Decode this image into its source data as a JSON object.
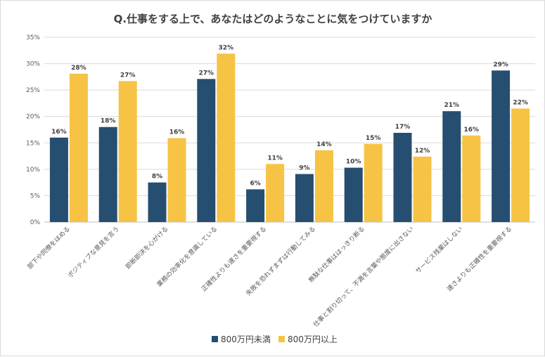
{
  "chart_data": {
    "type": "bar",
    "title": "Q.仕事をする上で、あなたはどのようなことに気をつけていますか",
    "categories": [
      "部下や同僚をほめる",
      "ポジティブな意見を言う",
      "即断即決を心がける",
      "業務の効率化を意識している",
      "正確性よりも速さを重要視する",
      "失敗を恐れずまずは行動してみる",
      "無駄な仕事ははっきり断る",
      "仕事と割り切って、不満を言葉や態度に出さない",
      "サービス残業はしない",
      "速さよりも正確性を重要視する"
    ],
    "series": [
      {
        "name": "800万円未満",
        "color": "#264e70",
        "values": [
          16,
          18,
          8,
          27,
          6,
          9,
          10,
          17,
          21,
          29
        ],
        "actual": [
          16.0,
          18.0,
          7.5,
          27.1,
          6.2,
          9.1,
          10.3,
          16.9,
          21.0,
          28.7
        ]
      },
      {
        "name": "800万円以上",
        "color": "#f6c344",
        "values": [
          28,
          27,
          16,
          32,
          11,
          14,
          15,
          12,
          16,
          22
        ],
        "actual": [
          28.1,
          26.7,
          15.9,
          31.9,
          11.0,
          13.6,
          14.8,
          12.4,
          16.4,
          21.5
        ]
      }
    ],
    "ylim": [
      0,
      35
    ],
    "yticks": [
      "0%",
      "5%",
      "10%",
      "15%",
      "20%",
      "25%",
      "30%",
      "35%"
    ],
    "ytick_values": [
      0,
      5,
      10,
      15,
      20,
      25,
      30,
      35
    ],
    "xlabel": "",
    "ylabel": "",
    "grid": true,
    "legend_position": "bottom",
    "label_suffix": "%"
  }
}
